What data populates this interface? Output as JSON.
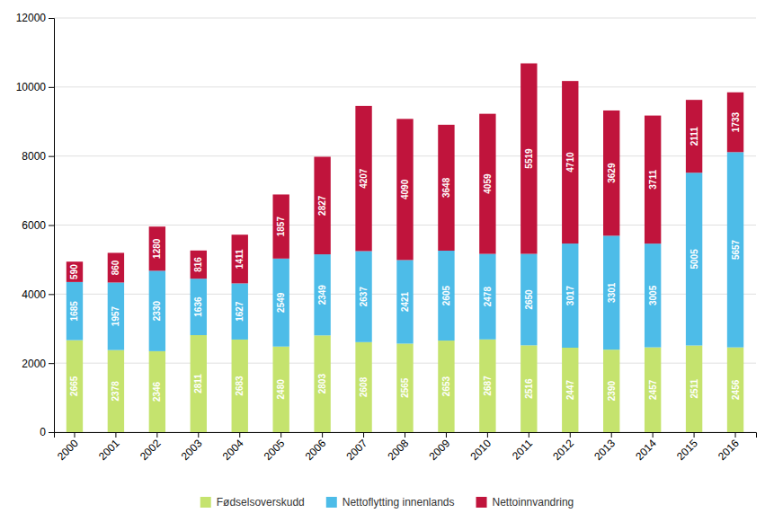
{
  "chart_data": {
    "type": "bar",
    "stacked": true,
    "data_labels": true,
    "grid": true,
    "legend": "bottom",
    "categories": [
      "2000",
      "2001",
      "2002",
      "2003",
      "2004",
      "2005",
      "2006",
      "2007",
      "2008",
      "2009",
      "2010",
      "2011",
      "2012",
      "2013",
      "2014",
      "2015",
      "2016"
    ],
    "series": [
      {
        "name": "Fødselsoverskudd",
        "color": "#c5e36e",
        "values": [
          2665,
          2378,
          2346,
          2811,
          2683,
          2480,
          2803,
          2608,
          2565,
          2653,
          2687,
          2516,
          2447,
          2390,
          2457,
          2511,
          2456
        ]
      },
      {
        "name": "Nettoflytting innenlands",
        "color": "#4dbce8",
        "values": [
          1685,
          1957,
          2330,
          1636,
          1627,
          2549,
          2349,
          2637,
          2421,
          2605,
          2478,
          2650,
          3017,
          3301,
          3005,
          5005,
          5657
        ]
      },
      {
        "name": "Nettoinnvandring",
        "color": "#c0143c",
        "values": [
          590,
          860,
          1280,
          816,
          1411,
          1857,
          2827,
          4207,
          4090,
          3648,
          4059,
          5519,
          4710,
          3629,
          3711,
          2111,
          1733
        ]
      }
    ],
    "ylim": [
      0,
      12000
    ],
    "yticks": [
      0,
      2000,
      4000,
      6000,
      8000,
      10000,
      12000
    ]
  }
}
